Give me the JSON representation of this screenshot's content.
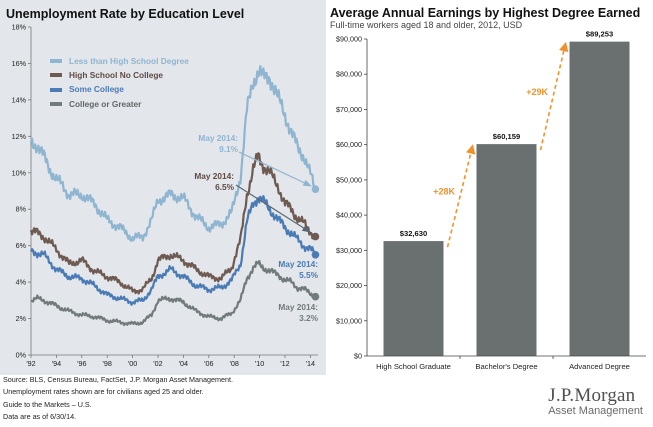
{
  "left_chart": {
    "title": "Unemployment Rate by Education Level",
    "legend": [
      "Less than High School Degree",
      "High School No College",
      "Some College",
      "College or Greater"
    ],
    "annotations": {
      "lths": {
        "label": "May 2014:",
        "value": "9.1%"
      },
      "hs": {
        "label": "May 2014:",
        "value": "6.5%"
      },
      "sc": {
        "label": "May 2014:",
        "value": "5.5%"
      },
      "col": {
        "label": "May 2014:",
        "value": "3.2%"
      }
    },
    "colors": {
      "lths": "#8fb5d1",
      "hs": "#6e5a51",
      "sc": "#4a7bb5",
      "col": "#717b7a",
      "arrow": "#5a6770"
    }
  },
  "right_chart": {
    "title": "Average Annual Earnings by Highest Degree Earned",
    "subtitle": "Full-time workers aged 18 and older, 2012, USD",
    "gap_labels": [
      "+28K",
      "+29K"
    ],
    "colors": {
      "bar": "#6a7070",
      "arrow": "#f0922b"
    }
  },
  "chart_data": [
    {
      "type": "line",
      "title": "Unemployment Rate by Education Level",
      "xlabel": "",
      "ylabel": "",
      "x_ticks": [
        "'92",
        "'94",
        "'96",
        "'98",
        "'00",
        "'02",
        "'04",
        "'06",
        "'08",
        "'10",
        "'12",
        "'14"
      ],
      "y_ticks": [
        "0%",
        "2%",
        "4%",
        "6%",
        "8%",
        "10%",
        "12%",
        "14%",
        "16%",
        "18%"
      ],
      "xlim": [
        1992,
        2014.6
      ],
      "ylim": [
        0,
        18
      ],
      "grid": false,
      "legend_position": "top-left",
      "series": [
        {
          "name": "Less than High School Degree",
          "key": "lths",
          "x": [
            1992.0,
            1992.5,
            1993.0,
            1993.5,
            1994.0,
            1994.5,
            1995.0,
            1996.0,
            1997.0,
            1998.0,
            1999.0,
            2000.0,
            2000.8,
            2001.5,
            2002.0,
            2003.0,
            2004.0,
            2005.0,
            2006.0,
            2007.0,
            2007.8,
            2008.5,
            2009.0,
            2009.5,
            2009.9,
            2010.3,
            2010.8,
            2011.5,
            2012.0,
            2012.5,
            2013.0,
            2013.5,
            2014.0,
            2014.4
          ],
          "values": [
            11.7,
            11.5,
            10.9,
            10.2,
            9.6,
            9.3,
            8.8,
            8.8,
            8.3,
            7.4,
            7.0,
            6.4,
            6.5,
            7.4,
            8.5,
            8.8,
            8.6,
            7.6,
            7.0,
            7.2,
            7.8,
            9.8,
            13.4,
            15.0,
            15.6,
            15.2,
            15.3,
            14.0,
            13.2,
            12.2,
            11.4,
            10.9,
            9.9,
            9.1
          ]
        },
        {
          "name": "High School No College",
          "key": "hs",
          "x": [
            1992.0,
            1992.5,
            1993.0,
            1994.0,
            1995.0,
            1996.0,
            1997.0,
            1998.0,
            1999.0,
            2000.0,
            2000.8,
            2001.5,
            2002.0,
            2003.0,
            2004.0,
            2005.0,
            2006.0,
            2007.0,
            2007.8,
            2008.5,
            2009.0,
            2009.5,
            2009.9,
            2010.3,
            2010.8,
            2011.5,
            2012.0,
            2012.5,
            2013.0,
            2013.5,
            2014.0,
            2014.4
          ],
          "values": [
            6.8,
            6.7,
            6.5,
            5.8,
            5.0,
            5.2,
            4.6,
            4.3,
            4.0,
            3.5,
            3.6,
            4.2,
            5.2,
            5.5,
            5.2,
            4.7,
            4.3,
            4.2,
            4.8,
            6.3,
            8.8,
            10.2,
            10.9,
            10.4,
            10.0,
            9.2,
            8.3,
            8.0,
            7.5,
            7.2,
            6.8,
            6.5
          ]
        },
        {
          "name": "Some College",
          "key": "sc",
          "x": [
            1992.0,
            1992.5,
            1993.0,
            1994.0,
            1995.0,
            1996.0,
            1997.0,
            1998.0,
            1999.0,
            2000.0,
            2000.8,
            2001.5,
            2002.0,
            2003.0,
            2004.0,
            2005.0,
            2006.0,
            2007.0,
            2007.8,
            2008.5,
            2009.0,
            2009.5,
            2009.9,
            2010.3,
            2010.8,
            2011.5,
            2012.0,
            2012.5,
            2013.0,
            2013.5,
            2014.0,
            2014.4
          ],
          "values": [
            5.7,
            5.6,
            5.5,
            4.7,
            4.3,
            4.2,
            3.8,
            3.3,
            3.1,
            2.9,
            3.0,
            3.6,
            4.3,
            4.7,
            4.3,
            3.8,
            3.6,
            3.7,
            4.1,
            5.0,
            7.3,
            8.3,
            8.7,
            8.4,
            8.0,
            7.4,
            7.0,
            6.7,
            6.3,
            6.0,
            5.8,
            5.5
          ]
        },
        {
          "name": "College or Greater",
          "key": "col",
          "x": [
            1992.0,
            1992.5,
            1993.0,
            1994.0,
            1995.0,
            1996.0,
            1997.0,
            1998.0,
            1999.0,
            2000.0,
            2000.8,
            2001.5,
            2002.0,
            2003.0,
            2004.0,
            2005.0,
            2006.0,
            2007.0,
            2007.8,
            2008.5,
            2009.0,
            2009.5,
            2009.9,
            2010.3,
            2010.8,
            2011.5,
            2012.0,
            2012.5,
            2013.0,
            2013.5,
            2014.0,
            2014.4
          ],
          "values": [
            3.0,
            3.1,
            3.0,
            2.7,
            2.4,
            2.2,
            2.1,
            1.9,
            1.8,
            1.7,
            1.8,
            2.2,
            3.0,
            3.1,
            2.9,
            2.4,
            2.1,
            2.0,
            2.3,
            3.0,
            4.2,
            4.8,
            5.0,
            4.8,
            4.6,
            4.4,
            4.1,
            4.0,
            3.7,
            3.6,
            3.4,
            3.2
          ]
        }
      ]
    },
    {
      "type": "bar",
      "title": "Average Annual Earnings by Highest Degree Earned",
      "subtitle": "Full-time workers aged 18 and older, 2012, USD",
      "categories": [
        "High School Graduate",
        "Bachelor's Degree",
        "Advanced Degree"
      ],
      "values": [
        32630,
        60159,
        89253
      ],
      "value_labels": [
        "$32,630",
        "$60,159",
        "$89,253"
      ],
      "y_ticks": [
        "$0",
        "$10,000",
        "$20,000",
        "$30,000",
        "$40,000",
        "$50,000",
        "$60,000",
        "$70,000",
        "$80,000",
        "$90,000"
      ],
      "ylim": [
        0,
        90000
      ],
      "grid": false,
      "xlabel": "",
      "ylabel": ""
    }
  ],
  "footnotes": [
    "Source: BLS, Census Bureau, FactSet, J.P. Morgan Asset Management.",
    "Unemployment rates shown are for civilians aged 25 and older.",
    "Guide to the Markets – U.S.",
    "Data are as of 6/30/14."
  ],
  "brand": {
    "name": "J.P.Morgan",
    "sub": "Asset Management"
  }
}
